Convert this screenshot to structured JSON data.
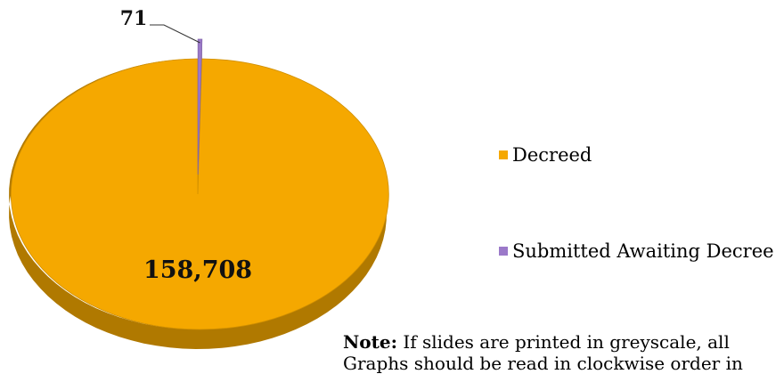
{
  "chart_data": {
    "type": "pie",
    "title": "",
    "slices": [
      {
        "label": "Decreed",
        "value": 158708,
        "value_label": "158,708",
        "color": "#f5a800"
      },
      {
        "label": "Submitted Awaiting Decree",
        "value": 71,
        "value_label": "71",
        "color": "#9b79c9"
      }
    ],
    "legend_placement": "right",
    "style": "3d-exploded"
  },
  "note": {
    "label": "Note:",
    "text": " If slides are printed in greyscale, all Graphs should be read in clockwise order in"
  }
}
